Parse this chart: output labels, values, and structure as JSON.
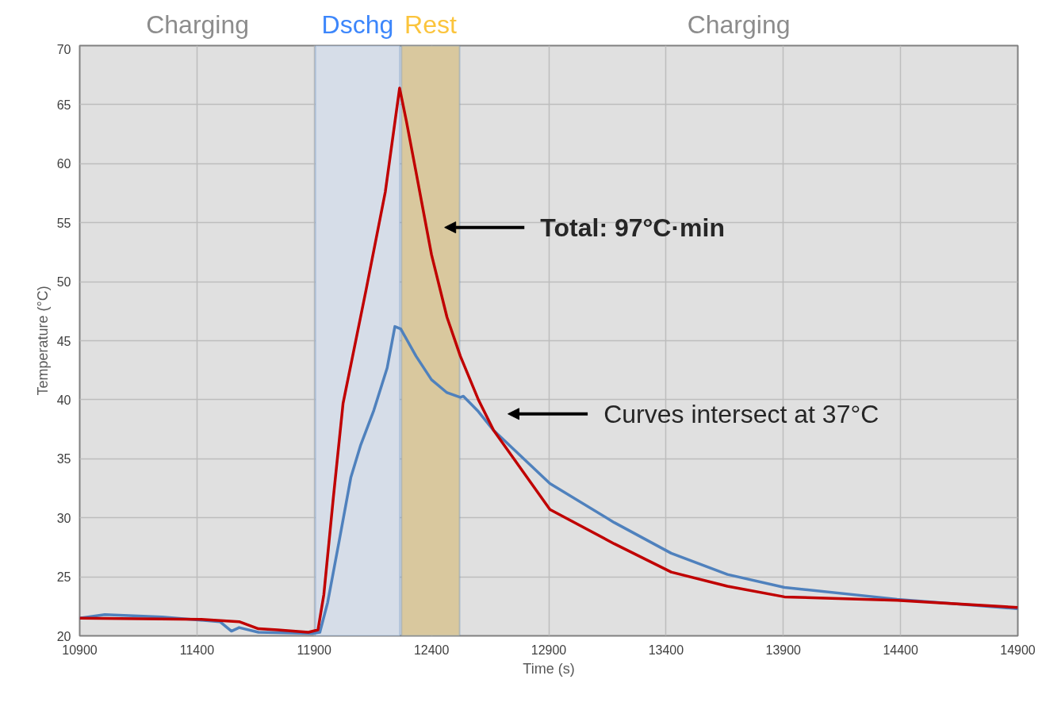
{
  "chart_data": {
    "type": "line",
    "xlabel": "Time (s)",
    "ylabel": "Temperature (°C)",
    "xlim": [
      10900,
      14900
    ],
    "xticks": [
      10900,
      11400,
      11900,
      12400,
      12900,
      13400,
      13900,
      14400,
      14900
    ],
    "ylim": [
      20,
      70
    ],
    "yticks": [
      20,
      25,
      30,
      35,
      40,
      45,
      50,
      55,
      60,
      65,
      70
    ],
    "grid": true,
    "series": [
      {
        "color": "#4f81bd",
        "x": [
          10900,
          11007,
          11252,
          11498,
          11547,
          11580,
          11662,
          11892,
          11924,
          11957,
          12007,
          12056,
          12097,
          12154,
          12211,
          12244,
          12269,
          12334,
          12400,
          12466,
          12523,
          12536,
          12600,
          12665,
          12905,
          13179,
          13422,
          13662,
          13905,
          14385,
          14900
        ],
        "values": [
          21.5,
          21.8,
          21.6,
          21.2,
          20.4,
          20.7,
          20.3,
          20.2,
          20.3,
          22.8,
          28.1,
          33.4,
          36.1,
          39.1,
          42.7,
          46.2,
          46.0,
          43.7,
          41.7,
          40.6,
          40.2,
          40.3,
          39.0,
          37.4,
          32.9,
          29.6,
          27.0,
          25.2,
          24.1,
          23.1,
          22.3
        ]
      },
      {
        "color": "#c00000",
        "x": [
          10900,
          11416,
          11580,
          11662,
          11744,
          11875,
          11916,
          11941,
          11982,
          12023,
          12121,
          12203,
          12264,
          12293,
          12334,
          12400,
          12466,
          12523,
          12600,
          12665,
          12905,
          13179,
          13422,
          13662,
          13905,
          14385,
          14900
        ],
        "values": [
          21.5,
          21.4,
          21.2,
          20.6,
          20.5,
          20.3,
          20.5,
          23.5,
          31.8,
          39.7,
          49.3,
          57.6,
          66.4,
          63.6,
          59.3,
          52.3,
          47.0,
          43.7,
          40.0,
          37.4,
          30.7,
          27.8,
          25.4,
          24.2,
          23.3,
          23.0,
          22.4
        ]
      }
    ],
    "bands": [
      {
        "axis": "x",
        "from": 11905,
        "to": 12265,
        "label": "Dschg",
        "color": "#d6dde8"
      },
      {
        "axis": "x",
        "from": 12272,
        "to": 12520,
        "label": "Rest",
        "color": "#d9c89e"
      }
    ],
    "annotations": [
      "Charging",
      "Charging",
      "Total: 97°C·min",
      "Curves intersect at 37°C"
    ]
  }
}
